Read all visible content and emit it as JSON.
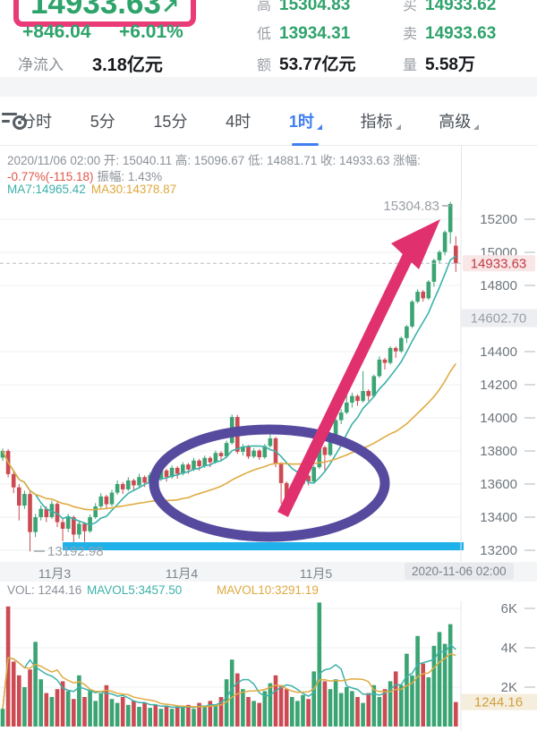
{
  "header": {
    "price": "14933.63",
    "price_arrow": "↗",
    "change": "+846.04",
    "change_pct": "+6.01%",
    "net_inflow_label": "净流入",
    "net_inflow_value": "3.18亿元",
    "stats": [
      {
        "label": "高",
        "value": "15304.83",
        "tone": "green"
      },
      {
        "label": "买",
        "value": "14933.62",
        "tone": "green"
      },
      {
        "label": "低",
        "value": "13934.31",
        "tone": "green"
      },
      {
        "label": "卖",
        "value": "14933.63",
        "tone": "green"
      },
      {
        "label": "额",
        "value": "53.77亿元",
        "tone": "dark"
      },
      {
        "label": "量",
        "value": "5.58万",
        "tone": "dark"
      }
    ]
  },
  "tabs": {
    "items": [
      {
        "label": "分时"
      },
      {
        "label": "5分"
      },
      {
        "label": "15分"
      },
      {
        "label": "4时"
      },
      {
        "label": "1时",
        "active": true,
        "caret": true
      },
      {
        "label": "指标",
        "caret": true
      },
      {
        "label": "高级",
        "caret": true
      }
    ]
  },
  "info": {
    "line1": "2020/11/06 02:00 开: 15040.11 高: 15096.67 低: 14881.71 收: 14933.63 涨幅:",
    "line2_red": "-0.77%(-115.18)",
    "line2_gray": "振幅: 1.43%",
    "ma7": "MA7:14965.42",
    "ma30": "MA30:14378.87"
  },
  "chart": {
    "high_label": "15304.83",
    "low_label": "13192.98",
    "current_price_badge": "14933.63",
    "gray_badge": "14602.70",
    "x_ticks": [
      "11月3",
      "11月4",
      "11月5"
    ],
    "x_end_badge": "2020-11-06 02:00"
  },
  "volhead": {
    "vol": "VOL: 1244.16",
    "mavol5": "MAVOL5:3457.50",
    "mavol10": "MAVOL10:3291.19"
  },
  "volume_axis": {
    "tick_labels": [
      "6K",
      "4K",
      "2K"
    ],
    "tick_values": [
      6000,
      4000,
      2000
    ],
    "current_badge": "1244.16"
  },
  "colors": {
    "green": "#2fa36c",
    "candle_up": "#3aa473",
    "candle_down": "#cc4a52",
    "ma7": "#3cb1a9",
    "ma30": "#e0ab43",
    "pink_arrow": "#e0316e",
    "purple_ellipse": "#564a9e",
    "blue_line": "#1fb2ea",
    "tab_active": "#3f7ef2",
    "grid": "#eef0f2",
    "tick_dash": "#c6cbd0",
    "axis_text": "#6f767d",
    "badge_red_bg": "#f9e6e7",
    "badge_red_text": "#c43a43",
    "badge_gray_bg": "#eceef1",
    "badge_gray_text": "#9aa0a6",
    "vol_badge_bg": "#f6eedc",
    "vol_badge_text": "#cf9f3c",
    "label_gray": "#9aa0a6",
    "dashed_line": "#b6bcc2",
    "border": "#e3e5e8"
  },
  "chart_data": {
    "type": "candlestick",
    "interval": "1h",
    "price_ticks": [
      15200,
      15000,
      14800,
      14400,
      14200,
      14000,
      13800,
      13600,
      13400,
      13200
    ],
    "price_range": [
      13200,
      15200
    ],
    "high_point": 15304.83,
    "low_point": 13192.98,
    "last_close": 14933.63,
    "last_volume": 1244.16,
    "ma_periods": [
      7,
      30
    ],
    "mavol_periods": [
      5,
      10
    ],
    "candles": [
      [
        13760,
        13815,
        13740,
        13800
      ],
      [
        13800,
        13812,
        13640,
        13660
      ],
      [
        13660,
        13680,
        13545,
        13580
      ],
      [
        13580,
        13600,
        13380,
        13470
      ],
      [
        13470,
        13560,
        13450,
        13540
      ],
      [
        13540,
        13555,
        13193,
        13310
      ],
      [
        13310,
        13420,
        13280,
        13400
      ],
      [
        13400,
        13470,
        13380,
        13450
      ],
      [
        13450,
        13465,
        13370,
        13400
      ],
      [
        13400,
        13500,
        13390,
        13480
      ],
      [
        13480,
        13495,
        13340,
        13370
      ],
      [
        13370,
        13390,
        13255,
        13330
      ],
      [
        13330,
        13420,
        13310,
        13400
      ],
      [
        13400,
        13410,
        13240,
        13295
      ],
      [
        13295,
        13380,
        13270,
        13360
      ],
      [
        13360,
        13370,
        13250,
        13315
      ],
      [
        13315,
        13415,
        13305,
        13400
      ],
      [
        13400,
        13485,
        13390,
        13465
      ],
      [
        13465,
        13545,
        13455,
        13525
      ],
      [
        13525,
        13535,
        13450,
        13478
      ],
      [
        13478,
        13565,
        13465,
        13548
      ],
      [
        13548,
        13622,
        13535,
        13600
      ],
      [
        13600,
        13612,
        13540,
        13568
      ],
      [
        13568,
        13642,
        13558,
        13622
      ],
      [
        13622,
        13632,
        13562,
        13592
      ],
      [
        13592,
        13662,
        13582,
        13642
      ],
      [
        13642,
        13652,
        13582,
        13608
      ],
      [
        13608,
        13672,
        13598,
        13655
      ],
      [
        13655,
        13668,
        13602,
        13628
      ],
      [
        13628,
        13698,
        13618,
        13682
      ],
      [
        13682,
        13692,
        13615,
        13642
      ],
      [
        13642,
        13712,
        13632,
        13698
      ],
      [
        13698,
        13708,
        13632,
        13662
      ],
      [
        13662,
        13732,
        13652,
        13718
      ],
      [
        13718,
        13728,
        13662,
        13688
      ],
      [
        13688,
        13758,
        13678,
        13742
      ],
      [
        13742,
        13752,
        13682,
        13708
      ],
      [
        13708,
        13772,
        13698,
        13758
      ],
      [
        13758,
        13768,
        13702,
        13732
      ],
      [
        13732,
        13802,
        13722,
        13788
      ],
      [
        13788,
        13798,
        13742,
        13768
      ],
      [
        13768,
        13862,
        13758,
        13848
      ],
      [
        13848,
        14020,
        13838,
        14005
      ],
      [
        14005,
        14018,
        13782,
        13795
      ],
      [
        13795,
        13842,
        13772,
        13826
      ],
      [
        13826,
        13836,
        13752,
        13766
      ],
      [
        13766,
        13816,
        13756,
        13802
      ],
      [
        13802,
        13812,
        13746,
        13762
      ],
      [
        13762,
        13842,
        13752,
        13830
      ],
      [
        13830,
        13906,
        13820,
        13876
      ],
      [
        13876,
        13886,
        13702,
        13722
      ],
      [
        13722,
        13732,
        13482,
        13606
      ],
      [
        13606,
        13616,
        13422,
        13506
      ],
      [
        13506,
        13576,
        13492,
        13562
      ],
      [
        13562,
        13616,
        13546,
        13602
      ],
      [
        13602,
        13662,
        13592,
        13650
      ],
      [
        13650,
        13662,
        13592,
        13616
      ],
      [
        13616,
        13712,
        13606,
        13702
      ],
      [
        13702,
        13832,
        13692,
        13822
      ],
      [
        13822,
        13832,
        13682,
        13776
      ],
      [
        13776,
        13912,
        13766,
        13896
      ],
      [
        13896,
        14002,
        13886,
        13986
      ],
      [
        13986,
        14052,
        13962,
        14032
      ],
      [
        14032,
        14232,
        14022,
        14092
      ],
      [
        14092,
        14152,
        14062,
        14132
      ],
      [
        14132,
        14142,
        14072,
        14102
      ],
      [
        14102,
        14282,
        14092,
        14162
      ],
      [
        14162,
        14172,
        14102,
        14132
      ],
      [
        14132,
        14262,
        14122,
        14252
      ],
      [
        14252,
        14372,
        14242,
        14352
      ],
      [
        14352,
        14362,
        14292,
        14332
      ],
      [
        14332,
        14432,
        14322,
        14422
      ],
      [
        14422,
        14432,
        14362,
        14402
      ],
      [
        14402,
        14492,
        14392,
        14482
      ],
      [
        14482,
        14562,
        14452,
        14552
      ],
      [
        14552,
        14712,
        14542,
        14702
      ],
      [
        14702,
        14777,
        14692,
        14762
      ],
      [
        14762,
        14772,
        14702,
        14722
      ],
      [
        14722,
        14832,
        14712,
        14822
      ],
      [
        14822,
        14962,
        14792,
        14952
      ],
      [
        14952,
        15012,
        14932,
        15002
      ],
      [
        15002,
        15132,
        14982,
        15122
      ],
      [
        15122,
        15304.83,
        15052,
        15292
      ],
      [
        15040.11,
        15096.67,
        14881.71,
        14933.63
      ]
    ],
    "volumes": [
      900,
      6100,
      3300,
      2600,
      2000,
      2900,
      4300,
      2400,
      1700,
      1500,
      1900,
      2300,
      1800,
      1400,
      2600,
      1500,
      1800,
      1300,
      1700,
      2100,
      1400,
      1200,
      1500,
      1100,
      1300,
      1000,
      1200,
      950,
      1100,
      900,
      1050,
      900,
      1000,
      950,
      1100,
      900,
      1200,
      1000,
      1300,
      1100,
      1500,
      2400,
      3400,
      2700,
      1900,
      1500,
      1300,
      1200,
      1800,
      2200,
      2600,
      2100,
      1900,
      1500,
      1300,
      1600,
      1400,
      2800,
      6300,
      2300,
      1900,
      2400,
      1700,
      2000,
      1800,
      1500,
      1200,
      1700,
      2100,
      1500,
      1900,
      2300,
      2800,
      2100,
      3700,
      2600,
      4600,
      3200,
      2500,
      4100,
      4800,
      4200,
      5200,
      1244.16
    ]
  }
}
